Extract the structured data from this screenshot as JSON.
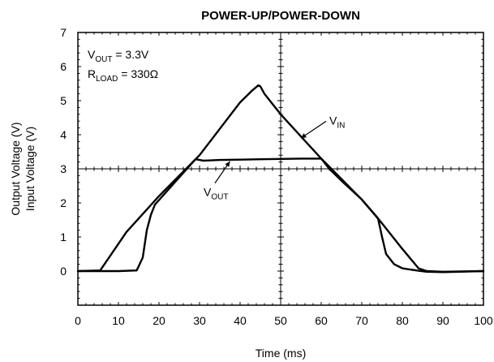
{
  "chart_data": {
    "type": "line",
    "title": "POWER-UP/POWER-DOWN",
    "xlabel": "Time (ms)",
    "ylabel_lines": [
      "Output Voltage (V)",
      "Input Voltage (V)"
    ],
    "xlim": [
      0,
      100
    ],
    "ylim": [
      -1,
      7
    ],
    "xticks": [
      0,
      10,
      20,
      30,
      40,
      50,
      60,
      70,
      80,
      90,
      100
    ],
    "yticks": [
      0,
      1,
      2,
      3,
      4,
      5,
      6,
      7
    ],
    "grid": "center-crosshair",
    "conditions": [
      {
        "main": "V",
        "sub": "OUT",
        "rest": " = 3.3V"
      },
      {
        "main": "R",
        "sub": "LOAD",
        "rest": " = 330Ω"
      }
    ],
    "series": [
      {
        "name": "VIN",
        "label_main": "V",
        "label_sub": "IN",
        "label_at": [
          62,
          4.3
        ],
        "arrow_to": [
          55,
          3.9
        ],
        "x": [
          0,
          5.5,
          12,
          20,
          30,
          40,
          43,
          44.5,
          45,
          46,
          50,
          60,
          70,
          75,
          80,
          84,
          86,
          90,
          100
        ],
        "y": [
          0,
          0.02,
          1.15,
          2.2,
          3.4,
          4.95,
          5.3,
          5.45,
          5.42,
          5.2,
          4.6,
          3.3,
          2.1,
          1.4,
          0.65,
          0.08,
          0.0,
          -0.02,
          0.0
        ]
      },
      {
        "name": "VOUT",
        "label_main": "V",
        "label_sub": "OUT",
        "label_at": [
          31,
          2.2
        ],
        "arrow_to": [
          37.5,
          3.22
        ],
        "x": [
          0,
          10,
          14.5,
          16,
          17,
          18,
          19,
          25,
          29,
          31,
          35,
          40,
          45,
          50,
          55,
          60,
          62,
          65,
          70,
          74,
          75,
          76,
          78,
          80,
          84,
          86,
          90,
          100
        ],
        "y": [
          0,
          0,
          0.02,
          0.4,
          1.2,
          1.65,
          1.95,
          2.75,
          3.28,
          3.24,
          3.26,
          3.27,
          3.28,
          3.29,
          3.3,
          3.3,
          3.0,
          2.65,
          2.1,
          1.55,
          1.0,
          0.5,
          0.2,
          0.08,
          0.01,
          -0.02,
          -0.03,
          0.0
        ]
      }
    ]
  }
}
